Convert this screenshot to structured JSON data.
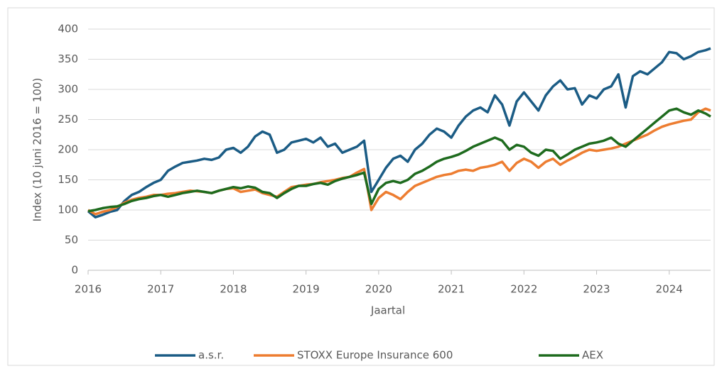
{
  "chart_data": {
    "type": "line",
    "y_label": "Index (10 juni 2016 = 100)",
    "x_label": "Jaartal",
    "x": [
      2016.0,
      2016.1,
      2016.2,
      2016.3,
      2016.4,
      2016.5,
      2016.6,
      2016.7,
      2016.8,
      2016.9,
      2017.0,
      2017.1,
      2017.2,
      2017.3,
      2017.4,
      2017.5,
      2017.6,
      2017.7,
      2017.8,
      2017.9,
      2018.0,
      2018.1,
      2018.2,
      2018.3,
      2018.4,
      2018.5,
      2018.6,
      2018.7,
      2018.8,
      2018.9,
      2019.0,
      2019.1,
      2019.2,
      2019.3,
      2019.4,
      2019.5,
      2019.6,
      2019.7,
      2019.8,
      2019.9,
      2020.0,
      2020.1,
      2020.2,
      2020.3,
      2020.4,
      2020.5,
      2020.6,
      2020.7,
      2020.8,
      2020.9,
      2021.0,
      2021.1,
      2021.2,
      2021.3,
      2021.4,
      2021.5,
      2021.6,
      2021.7,
      2021.8,
      2021.9,
      2022.0,
      2022.1,
      2022.2,
      2022.3,
      2022.4,
      2022.5,
      2022.6,
      2022.7,
      2022.8,
      2022.9,
      2023.0,
      2023.1,
      2023.2,
      2023.3,
      2023.4,
      2023.5,
      2023.6,
      2023.7,
      2023.8,
      2023.9,
      2024.0,
      2024.1,
      2024.2,
      2024.3,
      2024.4,
      2024.5,
      2024.57
    ],
    "series": [
      {
        "name": "a.s.r.",
        "color": "#1b5c85",
        "values": [
          98,
          88,
          92,
          97,
          100,
          115,
          125,
          130,
          138,
          145,
          150,
          165,
          172,
          178,
          180,
          182,
          185,
          183,
          187,
          200,
          203,
          195,
          205,
          222,
          230,
          225,
          195,
          200,
          212,
          215,
          218,
          212,
          220,
          205,
          210,
          195,
          200,
          205,
          215,
          130,
          150,
          170,
          185,
          190,
          180,
          200,
          210,
          225,
          235,
          230,
          220,
          240,
          255,
          265,
          270,
          262,
          290,
          275,
          240,
          280,
          295,
          280,
          265,
          290,
          305,
          315,
          300,
          302,
          275,
          290,
          285,
          300,
          305,
          325,
          270,
          322,
          330,
          325,
          335,
          345,
          362,
          360,
          350,
          355,
          362,
          365,
          368
        ]
      },
      {
        "name": "STOXX Europe Insurance 600",
        "color": "#ed7d31",
        "values": [
          100,
          93,
          97,
          100,
          105,
          112,
          117,
          120,
          122,
          125,
          125,
          127,
          128,
          130,
          132,
          131,
          130,
          128,
          132,
          135,
          136,
          130,
          132,
          134,
          128,
          125,
          122,
          130,
          138,
          140,
          142,
          143,
          146,
          148,
          150,
          153,
          155,
          162,
          168,
          100,
          120,
          130,
          125,
          118,
          130,
          140,
          145,
          150,
          155,
          158,
          160,
          165,
          167,
          165,
          170,
          172,
          175,
          180,
          165,
          178,
          185,
          180,
          170,
          180,
          185,
          175,
          182,
          188,
          195,
          200,
          198,
          200,
          202,
          205,
          210,
          215,
          220,
          225,
          232,
          238,
          242,
          245,
          248,
          250,
          262,
          268,
          265
        ]
      },
      {
        "name": "AEX",
        "color": "#1e6b1e",
        "values": [
          98,
          100,
          103,
          105,
          106,
          110,
          115,
          118,
          120,
          123,
          125,
          122,
          125,
          128,
          130,
          132,
          130,
          128,
          132,
          135,
          138,
          136,
          139,
          137,
          130,
          128,
          120,
          128,
          135,
          140,
          140,
          143,
          145,
          142,
          148,
          152,
          155,
          158,
          162,
          110,
          135,
          145,
          148,
          145,
          150,
          160,
          165,
          172,
          180,
          185,
          188,
          192,
          198,
          205,
          210,
          215,
          220,
          215,
          200,
          208,
          205,
          195,
          190,
          200,
          198,
          185,
          192,
          200,
          205,
          210,
          212,
          215,
          220,
          210,
          205,
          215,
          225,
          235,
          245,
          255,
          265,
          268,
          262,
          258,
          265,
          260,
          255
        ]
      }
    ],
    "xlim": [
      2016,
      2024.57
    ],
    "xticks": [
      2016,
      2017,
      2018,
      2019,
      2020,
      2021,
      2022,
      2023,
      2024
    ],
    "ylim": [
      0,
      400
    ],
    "yticks": [
      0,
      50,
      100,
      150,
      200,
      250,
      300,
      350,
      400
    ],
    "grid": true,
    "legend": "bottom"
  }
}
